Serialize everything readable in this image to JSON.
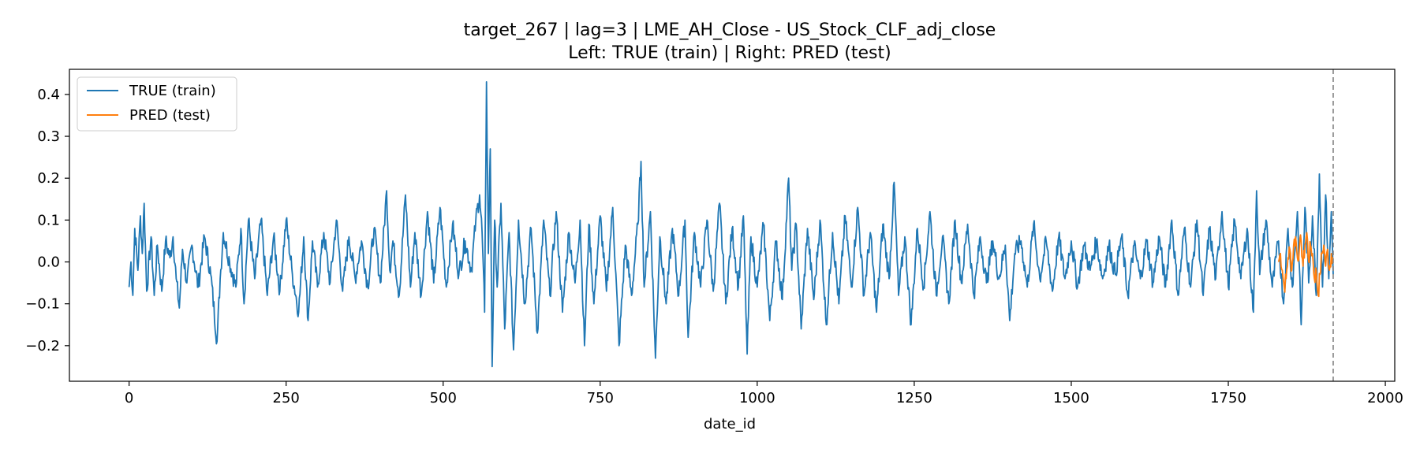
{
  "chart_data": {
    "type": "line",
    "title": "target_267 | lag=3 | LME_AH_Close - US_Stock_CLF_adj_close",
    "subtitle": "Left: TRUE (train) | Right: PRED (test)",
    "xlabel": "date_id",
    "ylabel": "",
    "xlim": [
      -95,
      2015
    ],
    "ylim": [
      -0.285,
      0.46
    ],
    "x_ticks": [
      0,
      250,
      500,
      750,
      1000,
      1250,
      1500,
      1750,
      2000
    ],
    "y_ticks": [
      -0.2,
      -0.1,
      0.0,
      0.1,
      0.2,
      0.3,
      0.4
    ],
    "y_tick_labels": [
      "−0.2",
      "−0.1",
      "0.0",
      "0.1",
      "0.2",
      "0.3",
      "0.4"
    ],
    "grid": false,
    "legend_position": "top-left",
    "vline": {
      "x": 1917,
      "style": "dashed",
      "color": "#808080"
    },
    "colors": {
      "train": "#1f77b4",
      "test": "#ff7f0e"
    },
    "series": [
      {
        "name": "TRUE (train)",
        "color": "#1f77b4",
        "x_start": 0,
        "x_step": 1,
        "anchors": [
          [
            0,
            -0.06
          ],
          [
            3,
            0.0
          ],
          [
            6,
            -0.08
          ],
          [
            9,
            0.08
          ],
          [
            14,
            -0.02
          ],
          [
            18,
            0.11
          ],
          [
            21,
            0.02
          ],
          [
            24,
            0.14
          ],
          [
            28,
            -0.07
          ],
          [
            35,
            0.06
          ],
          [
            40,
            -0.08
          ],
          [
            45,
            0.04
          ],
          [
            52,
            -0.07
          ],
          [
            58,
            0.05
          ],
          [
            65,
            0.01
          ],
          [
            70,
            0.06
          ],
          [
            75,
            -0.04
          ],
          [
            80,
            -0.11
          ],
          [
            85,
            0.03
          ],
          [
            92,
            -0.05
          ],
          [
            100,
            0.04
          ],
          [
            110,
            -0.06
          ],
          [
            120,
            0.06
          ],
          [
            130,
            -0.03
          ],
          [
            140,
            -0.19
          ],
          [
            145,
            -0.04
          ],
          [
            150,
            0.07
          ],
          [
            160,
            0.0
          ],
          [
            170,
            -0.06
          ],
          [
            178,
            0.08
          ],
          [
            183,
            -0.1
          ],
          [
            190,
            0.1
          ],
          [
            200,
            -0.04
          ],
          [
            210,
            0.1
          ],
          [
            220,
            -0.08
          ],
          [
            230,
            0.06
          ],
          [
            240,
            -0.07
          ],
          [
            250,
            0.1
          ],
          [
            260,
            -0.03
          ],
          [
            270,
            -0.12
          ],
          [
            278,
            0.06
          ],
          [
            285,
            -0.14
          ],
          [
            292,
            0.05
          ],
          [
            300,
            -0.06
          ],
          [
            310,
            0.07
          ],
          [
            320,
            -0.05
          ],
          [
            330,
            0.1
          ],
          [
            340,
            -0.07
          ],
          [
            350,
            0.06
          ],
          [
            360,
            -0.04
          ],
          [
            370,
            0.05
          ],
          [
            380,
            -0.06
          ],
          [
            390,
            0.08
          ],
          [
            400,
            -0.05
          ],
          [
            410,
            0.17
          ],
          [
            415,
            -0.02
          ],
          [
            420,
            0.05
          ],
          [
            430,
            -0.08
          ],
          [
            440,
            0.16
          ],
          [
            448,
            -0.06
          ],
          [
            455,
            0.07
          ],
          [
            465,
            -0.08
          ],
          [
            475,
            0.12
          ],
          [
            485,
            -0.05
          ],
          [
            495,
            0.13
          ],
          [
            505,
            -0.06
          ],
          [
            515,
            0.09
          ],
          [
            525,
            -0.03
          ],
          [
            535,
            0.05
          ],
          [
            545,
            -0.02
          ],
          [
            552,
            0.1
          ],
          [
            558,
            0.16
          ],
          [
            562,
            0.07
          ],
          [
            566,
            -0.12
          ],
          [
            569,
            0.43
          ],
          [
            572,
            0.02
          ],
          [
            575,
            0.27
          ],
          [
            578,
            -0.25
          ],
          [
            582,
            0.1
          ],
          [
            586,
            -0.06
          ],
          [
            592,
            0.14
          ],
          [
            598,
            -0.16
          ],
          [
            605,
            0.07
          ],
          [
            612,
            -0.21
          ],
          [
            620,
            0.1
          ],
          [
            630,
            -0.1
          ],
          [
            640,
            0.08
          ],
          [
            650,
            -0.17
          ],
          [
            660,
            0.1
          ],
          [
            670,
            -0.08
          ],
          [
            680,
            0.12
          ],
          [
            690,
            -0.12
          ],
          [
            700,
            0.07
          ],
          [
            710,
            -0.05
          ],
          [
            718,
            0.1
          ],
          [
            725,
            -0.2
          ],
          [
            732,
            0.09
          ],
          [
            740,
            -0.1
          ],
          [
            750,
            0.11
          ],
          [
            760,
            -0.07
          ],
          [
            770,
            0.13
          ],
          [
            780,
            -0.2
          ],
          [
            790,
            0.04
          ],
          [
            800,
            -0.08
          ],
          [
            810,
            0.09
          ],
          [
            815,
            0.24
          ],
          [
            820,
            -0.06
          ],
          [
            830,
            0.12
          ],
          [
            838,
            -0.23
          ],
          [
            845,
            0.06
          ],
          [
            855,
            -0.1
          ],
          [
            865,
            0.08
          ],
          [
            875,
            -0.08
          ],
          [
            885,
            0.1
          ],
          [
            890,
            -0.18
          ],
          [
            900,
            0.07
          ],
          [
            910,
            -0.06
          ],
          [
            920,
            0.1
          ],
          [
            930,
            -0.07
          ],
          [
            940,
            0.14
          ],
          [
            950,
            -0.1
          ],
          [
            960,
            0.08
          ],
          [
            970,
            -0.06
          ],
          [
            978,
            0.11
          ],
          [
            984,
            -0.22
          ],
          [
            990,
            0.06
          ],
          [
            1000,
            -0.06
          ],
          [
            1010,
            0.09
          ],
          [
            1020,
            -0.14
          ],
          [
            1030,
            0.05
          ],
          [
            1040,
            -0.09
          ],
          [
            1050,
            0.2
          ],
          [
            1055,
            -0.02
          ],
          [
            1062,
            0.09
          ],
          [
            1070,
            -0.16
          ],
          [
            1080,
            0.08
          ],
          [
            1090,
            -0.09
          ],
          [
            1100,
            0.1
          ],
          [
            1110,
            -0.15
          ],
          [
            1120,
            0.07
          ],
          [
            1130,
            -0.1
          ],
          [
            1140,
            0.11
          ],
          [
            1150,
            -0.06
          ],
          [
            1160,
            0.13
          ],
          [
            1170,
            -0.08
          ],
          [
            1180,
            0.07
          ],
          [
            1190,
            -0.12
          ],
          [
            1200,
            0.09
          ],
          [
            1210,
            -0.04
          ],
          [
            1218,
            0.19
          ],
          [
            1225,
            -0.08
          ],
          [
            1235,
            0.06
          ],
          [
            1245,
            -0.15
          ],
          [
            1255,
            0.08
          ],
          [
            1265,
            -0.06
          ],
          [
            1275,
            0.12
          ],
          [
            1285,
            -0.08
          ],
          [
            1295,
            0.06
          ],
          [
            1305,
            -0.1
          ],
          [
            1315,
            0.1
          ],
          [
            1325,
            -0.05
          ],
          [
            1335,
            0.09
          ],
          [
            1345,
            -0.08
          ],
          [
            1355,
            0.06
          ],
          [
            1365,
            -0.05
          ],
          [
            1375,
            0.05
          ],
          [
            1385,
            -0.04
          ],
          [
            1395,
            0.04
          ],
          [
            1402,
            -0.14
          ],
          [
            1410,
            0.02
          ],
          [
            1420,
            0.05
          ],
          [
            1430,
            -0.06
          ],
          [
            1440,
            0.09
          ],
          [
            1450,
            -0.04
          ],
          [
            1460,
            0.05
          ],
          [
            1470,
            -0.07
          ],
          [
            1480,
            0.06
          ],
          [
            1490,
            -0.04
          ],
          [
            1500,
            0.05
          ],
          [
            1510,
            -0.06
          ],
          [
            1520,
            0.04
          ],
          [
            1530,
            -0.02
          ],
          [
            1540,
            0.05
          ],
          [
            1550,
            -0.04
          ],
          [
            1560,
            0.04
          ],
          [
            1570,
            -0.03
          ],
          [
            1580,
            0.06
          ],
          [
            1590,
            -0.08
          ],
          [
            1600,
            0.04
          ],
          [
            1610,
            -0.04
          ],
          [
            1620,
            0.05
          ],
          [
            1630,
            -0.05
          ],
          [
            1640,
            0.06
          ],
          [
            1650,
            -0.06
          ],
          [
            1660,
            0.1
          ],
          [
            1670,
            -0.08
          ],
          [
            1680,
            0.08
          ],
          [
            1690,
            -0.06
          ],
          [
            1700,
            0.1
          ],
          [
            1710,
            -0.08
          ],
          [
            1720,
            0.08
          ],
          [
            1730,
            -0.04
          ],
          [
            1740,
            0.12
          ],
          [
            1750,
            -0.06
          ],
          [
            1760,
            0.1
          ],
          [
            1770,
            -0.04
          ],
          [
            1780,
            0.08
          ],
          [
            1790,
            -0.12
          ],
          [
            1795,
            0.17
          ],
          [
            1800,
            -0.03
          ],
          [
            1810,
            0.1
          ],
          [
            1820,
            -0.06
          ],
          [
            1830,
            0.05
          ],
          [
            1838,
            -0.1
          ],
          [
            1845,
            0.08
          ],
          [
            1852,
            -0.06
          ],
          [
            1860,
            0.12
          ],
          [
            1866,
            -0.15
          ],
          [
            1872,
            0.13
          ],
          [
            1878,
            -0.05
          ],
          [
            1884,
            0.11
          ],
          [
            1890,
            -0.08
          ],
          [
            1895,
            0.21
          ],
          [
            1900,
            -0.06
          ],
          [
            1905,
            0.16
          ],
          [
            1910,
            -0.04
          ],
          [
            1914,
            0.12
          ],
          [
            1917,
            -0.03
          ]
        ]
      },
      {
        "name": "PRED (test)",
        "color": "#ff7f0e",
        "x_start": 1830,
        "x_step": 1,
        "anchors": [
          [
            1830,
            0.0
          ],
          [
            1833,
            0.02
          ],
          [
            1836,
            -0.02
          ],
          [
            1839,
            -0.06
          ],
          [
            1842,
            -0.04
          ],
          [
            1845,
            0.01
          ],
          [
            1848,
            0.03
          ],
          [
            1851,
            -0.02
          ],
          [
            1854,
            0.04
          ],
          [
            1857,
            0.06
          ],
          [
            1860,
            0.01
          ],
          [
            1863,
            0.03
          ],
          [
            1866,
            0.05
          ],
          [
            1869,
            -0.01
          ],
          [
            1872,
            0.04
          ],
          [
            1875,
            0.07
          ],
          [
            1878,
            0.0
          ],
          [
            1881,
            0.04
          ],
          [
            1884,
            0.02
          ],
          [
            1887,
            -0.04
          ],
          [
            1890,
            -0.02
          ],
          [
            1893,
            -0.08
          ],
          [
            1896,
            -0.03
          ],
          [
            1899,
            0.02
          ],
          [
            1902,
            0.04
          ],
          [
            1905,
            -0.01
          ],
          [
            1908,
            0.03
          ],
          [
            1911,
            -0.02
          ],
          [
            1914,
            0.02
          ],
          [
            1917,
            0.01
          ]
        ]
      }
    ]
  }
}
